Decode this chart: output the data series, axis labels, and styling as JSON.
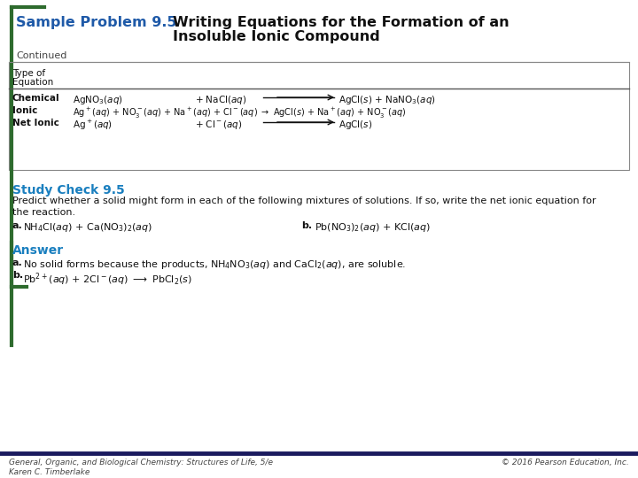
{
  "bg_color": "#ffffff",
  "green": "#2e6b2e",
  "blue_title": "#1f5aa8",
  "blue_study": "#1a7fbf",
  "navy": "#1a1a5e",
  "text_dark": "#111111",
  "text_gray": "#444444",
  "line_gray": "#888888",
  "sample_problem": "Sample Problem 9.5",
  "title_main_1": "Writing Equations for the Formation of an",
  "title_main_2": "Insoluble Ionic Compound",
  "continued": "Continued",
  "study_check_title": "Study Check 9.5",
  "study_check_line1": "Predict whether a solid might form in each of the following mixtures of solutions. If so, write the net ionic equation for",
  "study_check_line2": "the reaction.",
  "study_a_bold": "a.",
  "study_a_text": " NH₄Cl(åq) + Ca(NO₃)₂(åq)",
  "study_b_bold": "b.",
  "study_b_text": "  Pb(NO₃)₂(åq) + KCl(åq)",
  "answer_title": "Answer",
  "answer_a_bold": "a.",
  "answer_a_text": "  No solid forms because the products, NH₄NO₃(åq) and CaCl₂(åq), are soluble.",
  "answer_b_bold": "b.",
  "footer_left1": "General, Organic, and Biological Chemistry: Structures of Life, 5/e",
  "footer_left2": "Karen C. Timberlake",
  "footer_right": "© 2016 Pearson Education, Inc."
}
